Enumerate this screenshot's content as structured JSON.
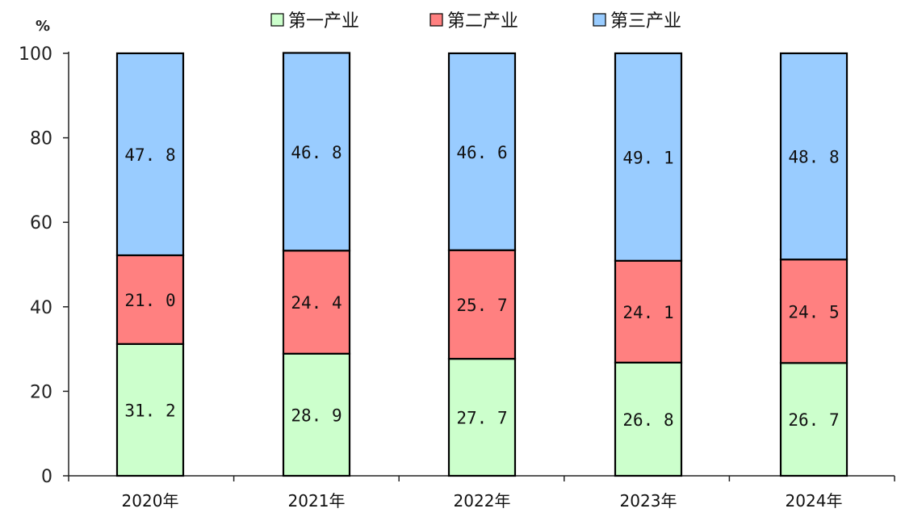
{
  "chart_data": {
    "type": "bar",
    "stacked": true,
    "unit_label": "%",
    "categories": [
      "2020年",
      "2021年",
      "2022年",
      "2023年",
      "2024年"
    ],
    "series": [
      {
        "name": "第一产业",
        "color": "#ccffcc",
        "values": [
          31.2,
          28.9,
          27.7,
          26.8,
          26.7
        ],
        "labels": [
          "31. 2",
          "28. 9",
          "27. 7",
          "26. 8",
          "26. 7"
        ]
      },
      {
        "name": "第二产业",
        "color": "#ff8080",
        "values": [
          21.0,
          24.4,
          25.7,
          24.1,
          24.5
        ],
        "labels": [
          "21. 0",
          "24. 4",
          "25. 7",
          "24. 1",
          "24. 5"
        ]
      },
      {
        "name": "第三产业",
        "color": "#99ccff",
        "values": [
          47.8,
          46.8,
          46.6,
          49.1,
          48.8
        ],
        "labels": [
          "47. 8",
          "46. 8",
          "46. 6",
          "49. 1",
          "48. 8"
        ]
      }
    ],
    "ylim": [
      0,
      100
    ],
    "yticks": [
      "0",
      "20",
      "40",
      "60",
      "80",
      "100"
    ],
    "legend_position": "top",
    "grid": false
  }
}
